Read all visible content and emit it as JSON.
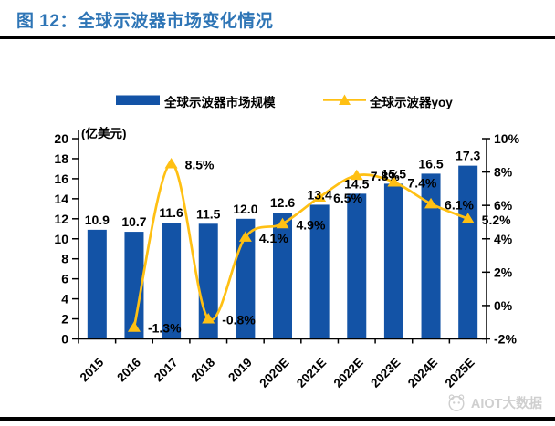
{
  "page": {
    "title": "图 12：全球示波器市场变化情况",
    "watermark": "AIOT大数据"
  },
  "chart_data": {
    "type": "bar",
    "subtype": "bar+line combo, dual axis",
    "title": "全球示波器市场变化情况",
    "categories": [
      "2015",
      "2016",
      "2017",
      "2018",
      "2019",
      "2020E",
      "2021E",
      "2022E",
      "2023E",
      "2024E",
      "2025E"
    ],
    "series": [
      {
        "name": "全球示波器市场规模",
        "type": "bar",
        "axis": "left",
        "unit": "亿美元",
        "color": "#1353A6",
        "values": [
          10.9,
          10.7,
          11.6,
          11.5,
          12.0,
          12.6,
          13.4,
          14.5,
          15.5,
          16.5,
          17.3
        ],
        "labels": [
          "10.9",
          "10.7",
          "11.6",
          "11.5",
          "12.0",
          "12.6",
          "13.4",
          "14.5",
          "15.5",
          "16.5",
          "17.3"
        ]
      },
      {
        "name": "全球示波器yoy",
        "type": "line",
        "axis": "right",
        "unit": "%",
        "color": "#FFC013",
        "marker": "triangle",
        "values": [
          null,
          -1.3,
          8.5,
          -0.8,
          4.1,
          4.9,
          6.5,
          7.8,
          7.4,
          6.1,
          5.2
        ],
        "labels": [
          "",
          "-1.3%",
          "8.5%",
          "-0.8%",
          "4.1%",
          "4.9%",
          "6.5%",
          "7.8%",
          "7.4%",
          "6.1%",
          "5.2%"
        ]
      }
    ],
    "left_axis": {
      "title": "(亿美元)",
      "min": 0,
      "max": 20,
      "step": 2
    },
    "right_axis": {
      "title": "",
      "min": -2,
      "max": 10,
      "step": 2,
      "suffix": "%"
    },
    "legend_position": "top",
    "grid": false,
    "x_label_rotation": -45
  }
}
